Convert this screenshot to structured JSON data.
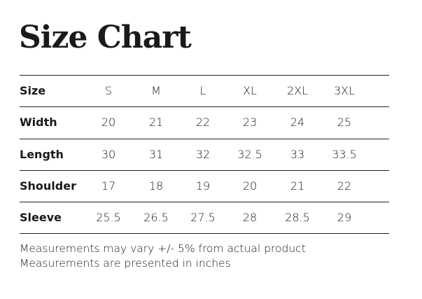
{
  "header": {
    "title": "Size Chart"
  },
  "table": {
    "columns": [
      "Size",
      "S",
      "M",
      "L",
      "XL",
      "2XL",
      "3XL"
    ],
    "rows": [
      [
        "Width",
        "20",
        "21",
        "22",
        "23",
        "24",
        "25"
      ],
      [
        "Length",
        "30",
        "31",
        "32",
        "32.5",
        "33",
        "33.5"
      ],
      [
        "Shoulder",
        "17",
        "18",
        "19",
        "20",
        "21",
        "22"
      ],
      [
        "Sleeve",
        "25.5",
        "26.5",
        "27.5",
        "28",
        "28.5",
        "29"
      ]
    ]
  },
  "notes": [
    "Measurements may vary +/- 5% from actual product",
    "Measurements are presented in inches"
  ]
}
